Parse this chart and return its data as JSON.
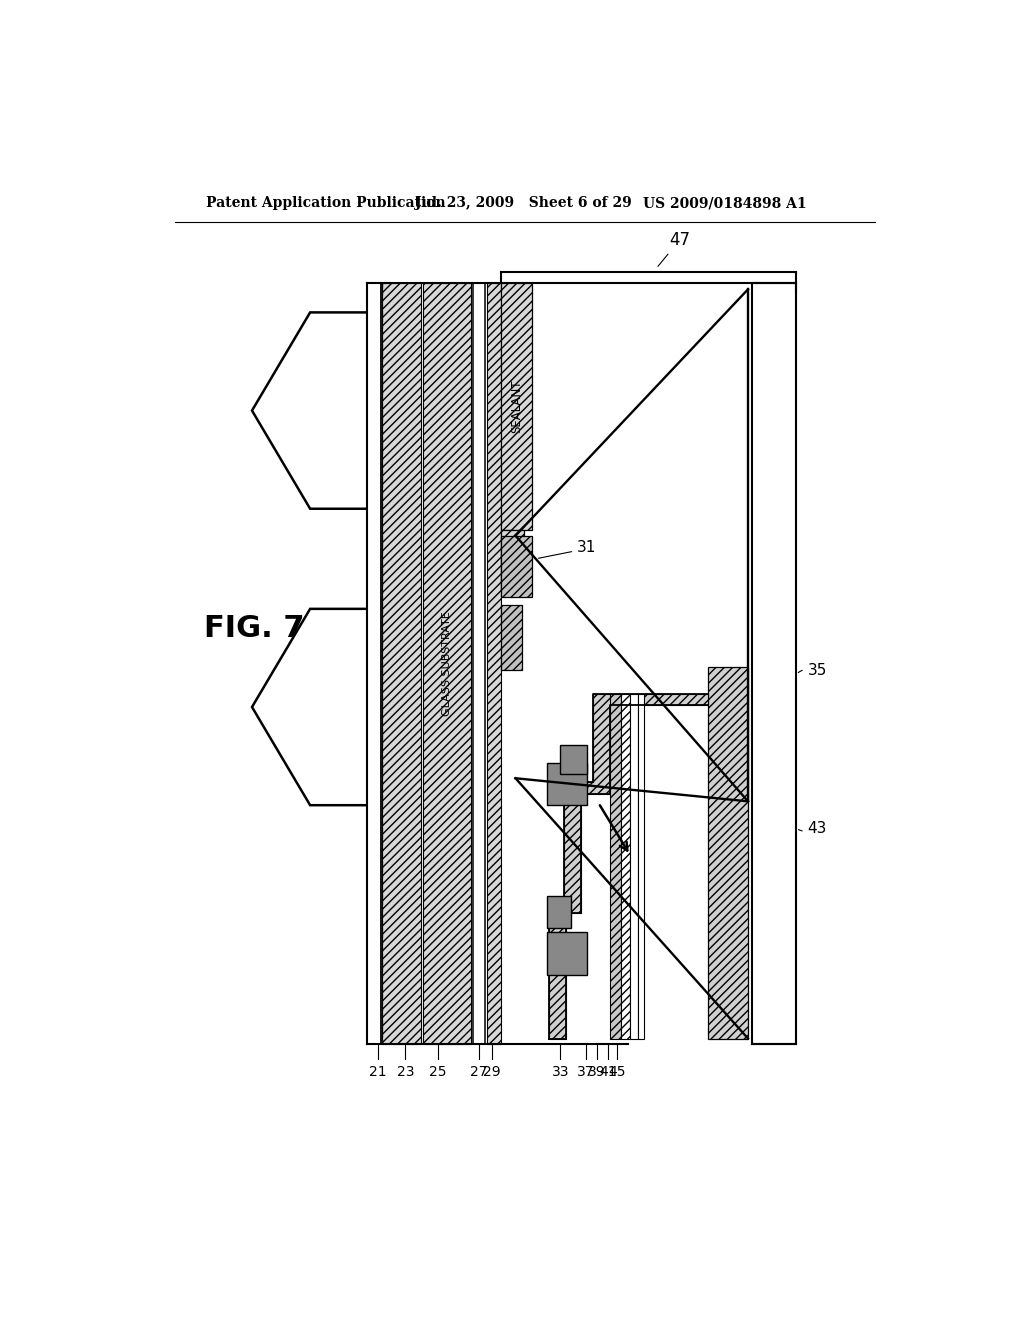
{
  "header_left": "Patent Application Publication",
  "header_mid": "Jul. 23, 2009   Sheet 6 of 29",
  "header_right": "US 2009/0184898 A1",
  "fig_label": "FIG. 7",
  "bg_color": "#ffffff",
  "label_47": "47",
  "label_31": "31",
  "label_35": "35",
  "label_43": "43",
  "sealant_text": "SEALANT",
  "glass_text": "GLASS SUBSTRATE",
  "bottom_labels": [
    "21",
    "23",
    "25",
    "27",
    "29",
    "33",
    "37",
    "39",
    "41",
    "45"
  ],
  "bottom_label_x_img": [
    322,
    358,
    400,
    453,
    470,
    558,
    591,
    605,
    619,
    631
  ]
}
